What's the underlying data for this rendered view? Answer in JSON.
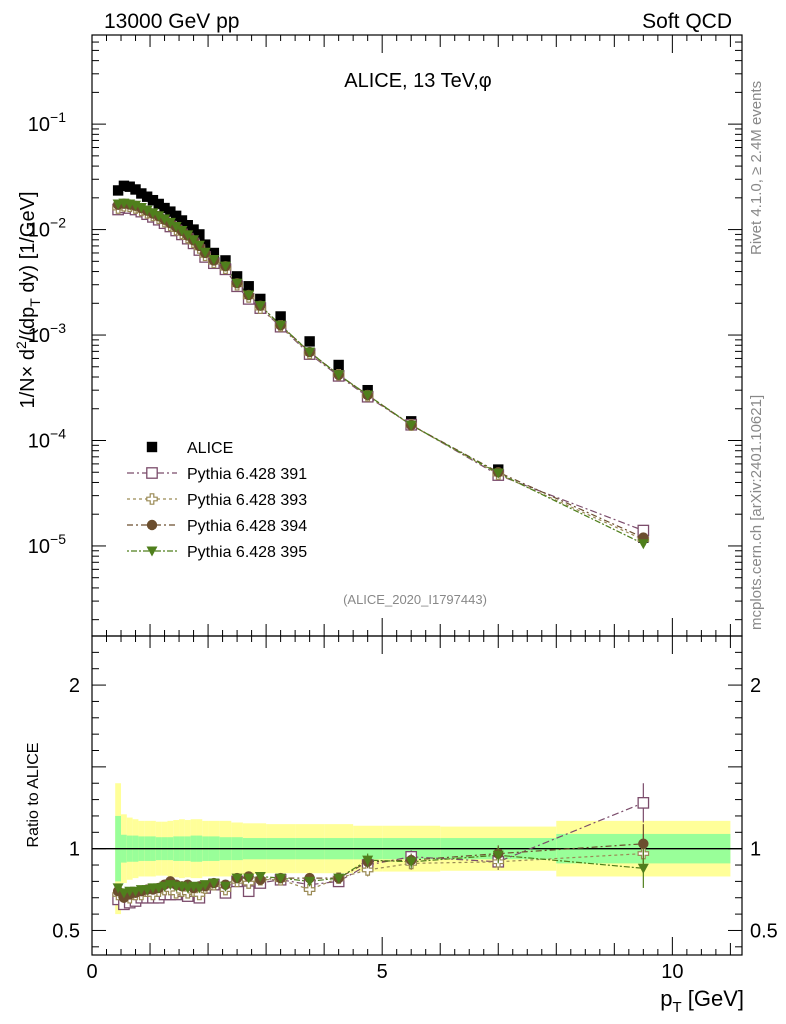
{
  "header": {
    "left": "13000 GeV pp",
    "right": "Soft QCD"
  },
  "side_labels": {
    "rivet": "Rivet 4.1.0, ≥ 2.4M events",
    "mcplots": "mcplots.cern.ch [arXiv:2401.10621]"
  },
  "chart_data": [
    {
      "type": "scatter",
      "panel": "main",
      "title": "ALICE, 13 TeV,φ",
      "analysis_tag": "(ALICE_2020_I1797443)",
      "ylabel": "1/N×d²/(dp_T dy) [1/GeV]",
      "ylabel_parts": {
        "pre": "1/N",
        "times": "×",
        "d": " d",
        "sq": "2",
        "mid": "/(dp",
        "sub": "T",
        "post": " dy) [1/GeV]"
      },
      "yscale": "log",
      "xlim": [
        0,
        11.2
      ],
      "ylim": [
        1.4e-06,
        0.7
      ],
      "yticks": [
        {
          "value": 1e-05,
          "base": "10",
          "exp": "−5"
        },
        {
          "value": 0.0001,
          "base": "10",
          "exp": "−4"
        },
        {
          "value": 0.001,
          "base": "10",
          "exp": "−3"
        },
        {
          "value": 0.01,
          "base": "10",
          "exp": "−2"
        },
        {
          "value": 0.1,
          "base": "10",
          "exp": "−1"
        }
      ],
      "x": [
        0.45,
        0.55,
        0.65,
        0.75,
        0.85,
        0.95,
        1.05,
        1.15,
        1.25,
        1.35,
        1.45,
        1.55,
        1.65,
        1.75,
        1.85,
        1.95,
        2.1,
        2.3,
        2.5,
        2.7,
        2.9,
        3.25,
        3.75,
        4.25,
        4.75,
        5.5,
        7.0,
        9.5
      ],
      "series": [
        {
          "name": "ALICE",
          "style": "data",
          "color": "#000000",
          "values": [
            0.0235,
            0.026,
            0.0255,
            0.024,
            0.022,
            0.0205,
            0.019,
            0.0175,
            0.016,
            0.0148,
            0.0135,
            0.0122,
            0.011,
            0.01,
            0.009,
            0.0072,
            0.006,
            0.0051,
            0.0036,
            0.0029,
            0.0022,
            0.0015,
            0.00087,
            0.00052,
            0.0003,
            0.000152,
            5.3e-05,
            1.2e-05
          ]
        },
        {
          "name": "Pythia 6.428 391",
          "style": "open-square",
          "color": "#7b4c6b",
          "values": [
            0.0155,
            0.0162,
            0.016,
            0.0155,
            0.0148,
            0.014,
            0.0132,
            0.0124,
            0.0115,
            0.0107,
            0.0098,
            0.009,
            0.0082,
            0.0074,
            0.0064,
            0.0055,
            0.0048,
            0.0042,
            0.0029,
            0.0022,
            0.0018,
            0.0012,
            0.00066,
            0.00041,
            0.00026,
            0.000141,
            4.7e-05,
            1.4e-05
          ]
        },
        {
          "name": "Pythia 6.428 393",
          "style": "open-cross",
          "color": "#9a8a55",
          "values": [
            0.016,
            0.0168,
            0.0166,
            0.016,
            0.0152,
            0.0144,
            0.0136,
            0.0128,
            0.0119,
            0.011,
            0.01,
            0.0092,
            0.0084,
            0.0076,
            0.0067,
            0.0057,
            0.0049,
            0.0043,
            0.003,
            0.0023,
            0.0018,
            0.00122,
            0.00067,
            0.00042,
            0.000265,
            0.00014,
            4.8e-05,
            1.15e-05
          ]
        },
        {
          "name": "Pythia 6.428 394",
          "style": "filled-circle",
          "color": "#6b4e2e",
          "values": [
            0.0172,
            0.0176,
            0.0173,
            0.0168,
            0.016,
            0.0151,
            0.0142,
            0.0134,
            0.0124,
            0.0115,
            0.0106,
            0.0097,
            0.0088,
            0.0079,
            0.007,
            0.006,
            0.0051,
            0.0045,
            0.0031,
            0.0024,
            0.0019,
            0.00124,
            0.00069,
            0.00042,
            0.00027,
            0.00014,
            5e-05,
            1.2e-05
          ]
        },
        {
          "name": "Pythia 6.428 395",
          "style": "filled-triangle",
          "color": "#4f7f1c",
          "values": [
            0.0175,
            0.0178,
            0.0175,
            0.017,
            0.0162,
            0.0153,
            0.0144,
            0.0135,
            0.0126,
            0.0117,
            0.0107,
            0.0098,
            0.0089,
            0.008,
            0.0071,
            0.0061,
            0.0052,
            0.0045,
            0.0031,
            0.0024,
            0.0019,
            0.00124,
            0.00069,
            0.00042,
            0.00027,
            0.00014,
            4.9e-05,
            1.05e-05
          ]
        }
      ]
    },
    {
      "type": "scatter",
      "panel": "ratio",
      "ylabel": "Ratio to ALICE",
      "xlabel": "p_T [GeV]",
      "xlabel_parts": {
        "p": "p",
        "sub": "T",
        "unit": " [GeV]"
      },
      "xlim": [
        0,
        11.2
      ],
      "ylim": [
        0.35,
        2.3
      ],
      "xticks": [
        {
          "value": 0,
          "label": "0"
        },
        {
          "value": 5,
          "label": "5"
        },
        {
          "value": 10,
          "label": "10"
        }
      ],
      "yticks": [
        {
          "value": 0.5,
          "label": "0.5"
        },
        {
          "value": 1,
          "label": "1"
        },
        {
          "value": 2,
          "label": "2"
        }
      ],
      "uncertainty_bands": {
        "bin_edges": [
          0.4,
          0.5,
          0.6,
          0.7,
          0.8,
          0.9,
          1.0,
          1.1,
          1.2,
          1.3,
          1.4,
          1.5,
          1.6,
          1.7,
          1.8,
          1.9,
          2.0,
          2.2,
          2.4,
          2.6,
          2.8,
          3.0,
          3.5,
          4.0,
          4.5,
          5.0,
          6.0,
          8.0,
          11.0
        ],
        "stat_half_width": [
          0.2,
          0.085,
          0.08,
          0.08,
          0.075,
          0.075,
          0.075,
          0.07,
          0.07,
          0.07,
          0.075,
          0.075,
          0.075,
          0.08,
          0.08,
          0.075,
          0.075,
          0.07,
          0.07,
          0.065,
          0.065,
          0.065,
          0.065,
          0.065,
          0.065,
          0.065,
          0.065,
          0.09
        ],
        "total_half_width": [
          0.4,
          0.21,
          0.19,
          0.18,
          0.17,
          0.17,
          0.17,
          0.165,
          0.165,
          0.17,
          0.175,
          0.18,
          0.175,
          0.18,
          0.18,
          0.17,
          0.17,
          0.17,
          0.16,
          0.155,
          0.155,
          0.15,
          0.15,
          0.15,
          0.14,
          0.14,
          0.135,
          0.17
        ],
        "stat_color": "#99ff99",
        "total_color": "#ffff99"
      },
      "series": [
        {
          "name": "Pythia 6.428 391",
          "style": "open-square",
          "color": "#7b4c6b",
          "values": [
            0.69,
            0.66,
            0.67,
            0.68,
            0.7,
            0.7,
            0.7,
            0.7,
            0.72,
            0.72,
            0.72,
            0.74,
            0.71,
            0.74,
            0.7,
            0.76,
            0.78,
            0.73,
            0.8,
            0.74,
            0.79,
            0.81,
            0.78,
            0.8,
            0.9,
            0.95,
            0.92,
            1.28
          ],
          "errors": [
            0.02,
            0.02,
            0.02,
            0.02,
            0.02,
            0.02,
            0.02,
            0.02,
            0.02,
            0.02,
            0.02,
            0.02,
            0.02,
            0.02,
            0.02,
            0.02,
            0.02,
            0.02,
            0.02,
            0.02,
            0.02,
            0.02,
            0.02,
            0.025,
            0.04,
            0.04,
            0.05,
            0.12
          ]
        },
        {
          "name": "Pythia 6.428 393",
          "style": "open-cross",
          "color": "#9a8a55",
          "values": [
            0.72,
            0.71,
            0.7,
            0.72,
            0.72,
            0.74,
            0.72,
            0.74,
            0.75,
            0.75,
            0.73,
            0.74,
            0.73,
            0.74,
            0.72,
            0.76,
            0.78,
            0.75,
            0.8,
            0.79,
            0.81,
            0.81,
            0.75,
            0.82,
            0.87,
            0.91,
            0.92,
            0.97
          ],
          "errors": [
            0.02,
            0.02,
            0.02,
            0.02,
            0.02,
            0.02,
            0.02,
            0.02,
            0.02,
            0.02,
            0.02,
            0.02,
            0.02,
            0.02,
            0.02,
            0.02,
            0.02,
            0.02,
            0.02,
            0.02,
            0.02,
            0.02,
            0.02,
            0.025,
            0.04,
            0.04,
            0.05,
            0.12
          ]
        },
        {
          "name": "Pythia 6.428 394",
          "style": "filled-circle",
          "color": "#6b4e2e",
          "values": [
            0.74,
            0.7,
            0.72,
            0.73,
            0.74,
            0.75,
            0.75,
            0.76,
            0.78,
            0.8,
            0.78,
            0.77,
            0.78,
            0.76,
            0.77,
            0.77,
            0.79,
            0.78,
            0.82,
            0.83,
            0.81,
            0.82,
            0.82,
            0.82,
            0.92,
            0.93,
            0.97,
            1.03
          ],
          "errors": [
            0.02,
            0.02,
            0.02,
            0.02,
            0.02,
            0.02,
            0.02,
            0.02,
            0.02,
            0.02,
            0.02,
            0.02,
            0.02,
            0.02,
            0.02,
            0.02,
            0.02,
            0.02,
            0.02,
            0.02,
            0.02,
            0.02,
            0.02,
            0.025,
            0.04,
            0.04,
            0.05,
            0.12
          ]
        },
        {
          "name": "Pythia 6.428 395",
          "style": "filled-triangle",
          "color": "#4f7f1c",
          "values": [
            0.76,
            0.73,
            0.74,
            0.74,
            0.75,
            0.75,
            0.76,
            0.76,
            0.77,
            0.78,
            0.77,
            0.77,
            0.76,
            0.77,
            0.76,
            0.78,
            0.79,
            0.77,
            0.82,
            0.82,
            0.83,
            0.82,
            0.8,
            0.82,
            0.93,
            0.92,
            0.96,
            0.88
          ],
          "errors": [
            0.02,
            0.02,
            0.02,
            0.02,
            0.02,
            0.02,
            0.02,
            0.02,
            0.02,
            0.02,
            0.02,
            0.02,
            0.02,
            0.02,
            0.02,
            0.02,
            0.02,
            0.02,
            0.02,
            0.02,
            0.02,
            0.02,
            0.02,
            0.025,
            0.04,
            0.04,
            0.05,
            0.12
          ]
        }
      ]
    }
  ],
  "legend": {
    "placement": "bottom-left",
    "entries": [
      {
        "label": "ALICE",
        "style": "data",
        "color": "#000000"
      },
      {
        "label": "Pythia 6.428 391",
        "style": "open-square",
        "color": "#7b4c6b"
      },
      {
        "label": "Pythia 6.428 393",
        "style": "open-cross",
        "color": "#9a8a55"
      },
      {
        "label": "Pythia 6.428 394",
        "style": "filled-circle",
        "color": "#6b4e2e"
      },
      {
        "label": "Pythia 6.428 395",
        "style": "filled-triangle",
        "color": "#4f7f1c"
      }
    ]
  }
}
